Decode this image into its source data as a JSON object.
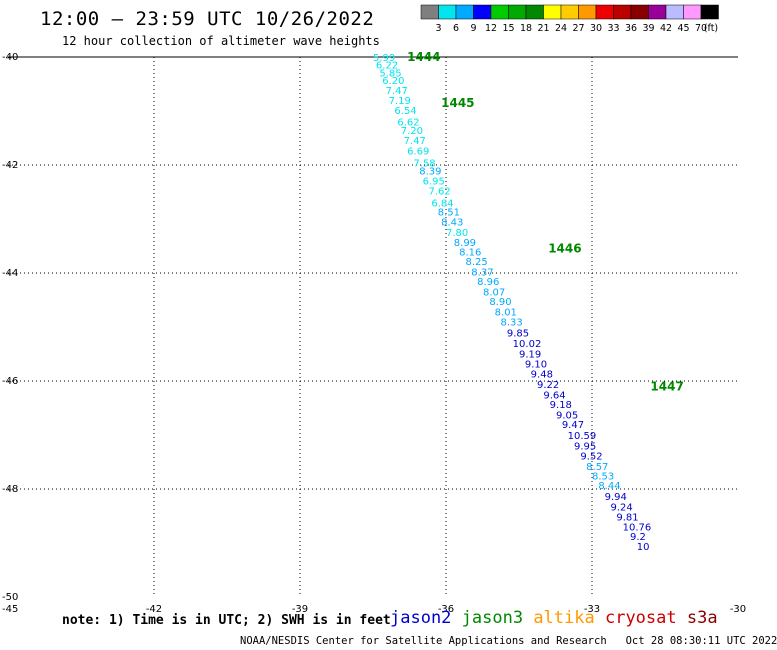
{
  "title": "12:00 – 23:59 UTC 10/26/2022",
  "subtitle": "12 hour collection of altimeter wave heights",
  "colorbar": {
    "unit": "(ft)",
    "labels": [
      "3",
      "6",
      "9",
      "12",
      "15",
      "18",
      "21",
      "24",
      "27",
      "30",
      "33",
      "36",
      "39",
      "42",
      "45",
      "70"
    ],
    "colors": [
      "#7f7f7f",
      "#00e5ee",
      "#00aaff",
      "#0000ff",
      "#00cc00",
      "#00aa00",
      "#008800",
      "#ffff00",
      "#ffcc00",
      "#ff9900",
      "#ee0000",
      "#bb0000",
      "#880000",
      "#990099",
      "#bbbbff",
      "#ff99ff",
      "#000000"
    ]
  },
  "axes": {
    "x_ticks": [
      "-45",
      "-42",
      "-39",
      "-36",
      "-33",
      "-30"
    ],
    "y_ticks": [
      "-40",
      "-42",
      "-44",
      "-46",
      "-48",
      "-50"
    ]
  },
  "footnote": "note: 1) Time is in UTC; 2) SWH is in feet",
  "credit": "NOAA/NESDIS Center for Satellite Applications and Research   Oct 28 08:30:11 UTC 2022",
  "legend": [
    {
      "name": "jason2",
      "color": "#0000cc"
    },
    {
      "name": "jason3",
      "color": "#008800"
    },
    {
      "name": "altika",
      "color": "#ff9900"
    },
    {
      "name": "cryosat",
      "color": "#cc0000"
    },
    {
      "name": "s3a",
      "color": "#880000"
    }
  ],
  "chart_data": {
    "type": "scatter",
    "xlim": [
      -45,
      -30
    ],
    "ylim": [
      -50,
      -40
    ],
    "grid": true,
    "pass_labels": [
      {
        "label": "1444",
        "lon": -36.8,
        "lat": -40.0
      },
      {
        "label": "1445",
        "lon": -36.1,
        "lat": -40.85
      },
      {
        "label": "1446",
        "lon": -33.9,
        "lat": -43.55
      },
      {
        "label": "1447",
        "lon": -31.8,
        "lat": -46.1
      }
    ],
    "points": [
      {
        "v": "5.99",
        "lon": -37.5,
        "lat": -40.0,
        "c": "#00e5ee"
      },
      {
        "v": "6.22",
        "lon": -37.44,
        "lat": -40.14,
        "c": "#00e5ee"
      },
      {
        "v": "5.85",
        "lon": -37.37,
        "lat": -40.29,
        "c": "#00e5ee"
      },
      {
        "v": "6.20",
        "lon": -37.31,
        "lat": -40.43,
        "c": "#00e5ee"
      },
      {
        "v": "7.47",
        "lon": -37.24,
        "lat": -40.61,
        "c": "#00e5ee"
      },
      {
        "v": "7.19",
        "lon": -37.18,
        "lat": -40.8,
        "c": "#00e5ee"
      },
      {
        "v": "6.54",
        "lon": -37.06,
        "lat": -40.98,
        "c": "#00e5ee"
      },
      {
        "v": "6.62",
        "lon": -37.0,
        "lat": -41.19,
        "c": "#00e5ee"
      },
      {
        "v": "7.20",
        "lon": -36.93,
        "lat": -41.35,
        "c": "#00e5ee"
      },
      {
        "v": "7.47",
        "lon": -36.87,
        "lat": -41.54,
        "c": "#00e5ee"
      },
      {
        "v": "6.69",
        "lon": -36.8,
        "lat": -41.73,
        "c": "#00e5ee"
      },
      {
        "v": "7.58",
        "lon": -36.67,
        "lat": -41.95,
        "c": "#00e5ee"
      },
      {
        "v": "8.39",
        "lon": -36.55,
        "lat": -42.1,
        "c": "#00aaff"
      },
      {
        "v": "6.95",
        "lon": -36.48,
        "lat": -42.29,
        "c": "#00e5ee"
      },
      {
        "v": "7.62",
        "lon": -36.36,
        "lat": -42.47,
        "c": "#00e5ee"
      },
      {
        "v": "6.84",
        "lon": -36.3,
        "lat": -42.69,
        "c": "#00e5ee"
      },
      {
        "v": "8.51",
        "lon": -36.17,
        "lat": -42.86,
        "c": "#00aaff"
      },
      {
        "v": "8.43",
        "lon": -36.1,
        "lat": -43.05,
        "c": "#00aaff"
      },
      {
        "v": "7.80",
        "lon": -36.0,
        "lat": -43.24,
        "c": "#00e5ee"
      },
      {
        "v": "8.99",
        "lon": -35.84,
        "lat": -43.43,
        "c": "#00aaff"
      },
      {
        "v": "8.16",
        "lon": -35.73,
        "lat": -43.6,
        "c": "#00aaff"
      },
      {
        "v": "8.25",
        "lon": -35.6,
        "lat": -43.78,
        "c": "#00aaff"
      },
      {
        "v": "8.37",
        "lon": -35.48,
        "lat": -43.97,
        "c": "#00aaff"
      },
      {
        "v": "8.96",
        "lon": -35.36,
        "lat": -44.15,
        "c": "#00aaff"
      },
      {
        "v": "8.07",
        "lon": -35.24,
        "lat": -44.34,
        "c": "#00aaff"
      },
      {
        "v": "8.90",
        "lon": -35.11,
        "lat": -44.52,
        "c": "#00aaff"
      },
      {
        "v": "8.01",
        "lon": -35.0,
        "lat": -44.71,
        "c": "#00aaff"
      },
      {
        "v": "8.33",
        "lon": -34.88,
        "lat": -44.9,
        "c": "#00aaff"
      },
      {
        "v": "9.85",
        "lon": -34.75,
        "lat": -45.1,
        "c": "#0000cc"
      },
      {
        "v": "10.02",
        "lon": -34.63,
        "lat": -45.3,
        "c": "#0000cc"
      },
      {
        "v": "9.19",
        "lon": -34.5,
        "lat": -45.49,
        "c": "#0000cc"
      },
      {
        "v": "9.10",
        "lon": -34.38,
        "lat": -45.68,
        "c": "#0000cc"
      },
      {
        "v": "9.48",
        "lon": -34.26,
        "lat": -45.86,
        "c": "#0000cc"
      },
      {
        "v": "9.22",
        "lon": -34.13,
        "lat": -46.06,
        "c": "#0000cc"
      },
      {
        "v": "9.64",
        "lon": -34.0,
        "lat": -46.25,
        "c": "#0000cc"
      },
      {
        "v": "9.18",
        "lon": -33.87,
        "lat": -46.43,
        "c": "#0000cc"
      },
      {
        "v": "9.05",
        "lon": -33.74,
        "lat": -46.62,
        "c": "#0000cc"
      },
      {
        "v": "9.47",
        "lon": -33.62,
        "lat": -46.8,
        "c": "#0000cc"
      },
      {
        "v": "10.59",
        "lon": -33.5,
        "lat": -47.0,
        "c": "#0000cc"
      },
      {
        "v": "9.95",
        "lon": -33.37,
        "lat": -47.19,
        "c": "#0000cc"
      },
      {
        "v": "9.52",
        "lon": -33.24,
        "lat": -47.38,
        "c": "#0000cc"
      },
      {
        "v": "8.57",
        "lon": -33.12,
        "lat": -47.57,
        "c": "#00aaff"
      },
      {
        "v": "8.53",
        "lon": -33.0,
        "lat": -47.75,
        "c": "#00aaff"
      },
      {
        "v": "8.44",
        "lon": -32.87,
        "lat": -47.93,
        "c": "#00aaff"
      },
      {
        "v": "9.94",
        "lon": -32.74,
        "lat": -48.13,
        "c": "#0000cc"
      },
      {
        "v": "9.24",
        "lon": -32.62,
        "lat": -48.32,
        "c": "#0000cc"
      },
      {
        "v": "9.81",
        "lon": -32.5,
        "lat": -48.51,
        "c": "#0000cc"
      },
      {
        "v": "10.76",
        "lon": -32.37,
        "lat": -48.69,
        "c": "#0000cc"
      },
      {
        "v": "9.2",
        "lon": -32.22,
        "lat": -48.87,
        "c": "#0000cc"
      },
      {
        "v": "10",
        "lon": -32.08,
        "lat": -49.06,
        "c": "#0000cc"
      }
    ]
  }
}
